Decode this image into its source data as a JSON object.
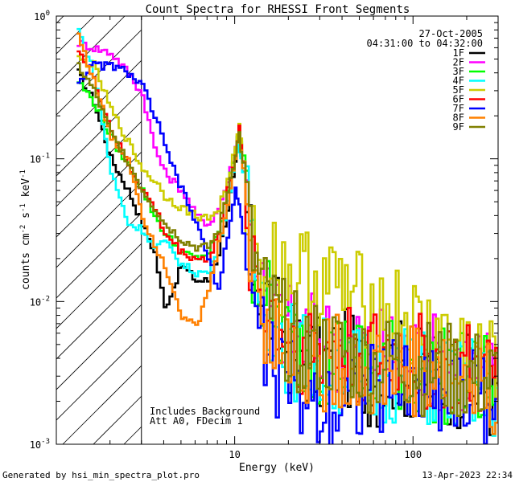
{
  "chart_data": {
    "type": "line",
    "title": "Count Spectra for RHESSI Front Segments",
    "xlabel": "Energy (keV)",
    "ylabel": {
      "base": "counts cm",
      "sup1": "-2",
      "mid1": " s",
      "sup2": "-1",
      "mid2": " keV",
      "sup3": "-1"
    },
    "xscale": "log",
    "yscale": "log",
    "xlim": [
      1.0,
      300
    ],
    "ylim": [
      0.001,
      1.0
    ],
    "xticks": [
      {
        "value": 10,
        "label": "10"
      },
      {
        "value": 100,
        "label": "100"
      }
    ],
    "yticks": [
      {
        "value": 1.0,
        "base": "10",
        "exp": "0"
      },
      {
        "value": 0.1,
        "base": "10",
        "exp": "-1"
      },
      {
        "value": 0.01,
        "base": "10",
        "exp": "-2"
      },
      {
        "value": 0.001,
        "base": "10",
        "exp": "-3"
      }
    ],
    "attenuator_region": {
      "xmax_kev": 3.0
    },
    "legend": {
      "placement": "top-right",
      "date": "27-Oct-2005",
      "time_range": "04:31:00 to 04:32:00"
    },
    "annotation_lines": [
      "Includes Background",
      "Att A0, FDecim 1"
    ],
    "footer_left": "Generated by hsi_min_spectra_plot.pro",
    "footer_right": "13-Apr-2023 22:34",
    "series": [
      {
        "name": "1F",
        "color": "#000000",
        "energies": [
          1.3,
          1.6,
          2.0,
          2.5,
          3.0,
          3.5,
          4.0,
          5.0,
          6.0,
          7.0,
          8.0,
          9.0,
          10.0,
          10.5,
          11.0,
          12.0,
          14.0,
          17.0,
          20.0,
          25.0,
          30.0,
          40.0,
          50.0,
          60.0,
          80.0,
          100.0,
          150.0,
          200.0,
          250.0,
          300.0
        ],
        "values": [
          0.4,
          0.25,
          0.1,
          0.06,
          0.035,
          0.022,
          0.009,
          0.018,
          0.014,
          0.014,
          0.022,
          0.045,
          0.09,
          0.13,
          0.08,
          0.022,
          0.012,
          0.007,
          0.0048,
          0.004,
          0.0035,
          0.0042,
          0.0033,
          0.0028,
          0.0036,
          0.0031,
          0.003,
          0.0027,
          0.0024,
          0.0022
        ]
      },
      {
        "name": "2F",
        "color": "#ff00ff",
        "energies": [
          1.3,
          1.6,
          2.0,
          2.5,
          3.0,
          3.5,
          4.0,
          5.0,
          6.0,
          7.0,
          8.0,
          9.0,
          10.0,
          10.5,
          11.0,
          12.0,
          14.0,
          17.0,
          20.0,
          25.0,
          30.0,
          40.0,
          50.0,
          60.0,
          80.0,
          100.0,
          150.0,
          200.0,
          250.0,
          300.0
        ],
        "values": [
          0.65,
          0.6,
          0.55,
          0.4,
          0.28,
          0.12,
          0.08,
          0.06,
          0.04,
          0.035,
          0.045,
          0.07,
          0.12,
          0.16,
          0.1,
          0.03,
          0.012,
          0.008,
          0.0065,
          0.0055,
          0.0055,
          0.005,
          0.0045,
          0.0043,
          0.0045,
          0.0042,
          0.0038,
          0.0035,
          0.0033,
          0.003
        ]
      },
      {
        "name": "3F",
        "color": "#00ff00",
        "energies": [
          1.3,
          1.6,
          2.0,
          2.5,
          3.0,
          3.5,
          4.0,
          5.0,
          6.0,
          7.0,
          8.0,
          9.0,
          10.0,
          10.5,
          11.0,
          12.0,
          14.0,
          17.0,
          20.0,
          25.0,
          30.0,
          40.0,
          50.0,
          60.0,
          80.0,
          100.0,
          150.0,
          200.0,
          250.0,
          300.0
        ],
        "values": [
          0.35,
          0.25,
          0.14,
          0.09,
          0.06,
          0.04,
          0.03,
          0.022,
          0.02,
          0.022,
          0.03,
          0.06,
          0.12,
          0.18,
          0.1,
          0.025,
          0.011,
          0.0072,
          0.0052,
          0.0045,
          0.0042,
          0.004,
          0.0036,
          0.0032,
          0.0037,
          0.0033,
          0.003,
          0.0028,
          0.0026,
          0.0024
        ]
      },
      {
        "name": "4F",
        "color": "#00ffff",
        "energies": [
          1.3,
          1.6,
          2.0,
          2.5,
          3.0,
          3.5,
          4.0,
          5.0,
          6.0,
          7.0,
          8.0,
          9.0,
          10.0,
          10.5,
          11.0,
          12.0,
          14.0,
          17.0,
          20.0,
          25.0,
          30.0,
          40.0,
          50.0,
          60.0,
          80.0,
          100.0,
          150.0,
          200.0,
          250.0,
          300.0
        ],
        "values": [
          0.8,
          0.4,
          0.08,
          0.035,
          0.032,
          0.024,
          0.026,
          0.018,
          0.016,
          0.016,
          0.025,
          0.05,
          0.1,
          0.14,
          0.08,
          0.022,
          0.011,
          0.0066,
          0.0047,
          0.004,
          0.0036,
          0.0034,
          0.0031,
          0.0029,
          0.0032,
          0.003,
          0.0028,
          0.0026,
          0.0024,
          0.0022
        ]
      },
      {
        "name": "5F",
        "color": "#cccc00",
        "energies": [
          1.3,
          1.6,
          2.0,
          2.5,
          3.0,
          3.5,
          4.0,
          5.0,
          6.0,
          7.0,
          8.0,
          9.0,
          10.0,
          10.5,
          11.0,
          12.0,
          14.0,
          17.0,
          20.0,
          25.0,
          30.0,
          40.0,
          50.0,
          60.0,
          80.0,
          100.0,
          150.0,
          200.0,
          250.0,
          300.0
        ],
        "values": [
          0.5,
          0.45,
          0.22,
          0.13,
          0.085,
          0.07,
          0.055,
          0.045,
          0.04,
          0.038,
          0.045,
          0.07,
          0.12,
          0.17,
          0.1,
          0.03,
          0.022,
          0.018,
          0.016,
          0.015,
          0.014,
          0.012,
          0.01,
          0.009,
          0.008,
          0.0065,
          0.0055,
          0.0045,
          0.0038,
          0.0032
        ]
      },
      {
        "name": "6F",
        "color": "#ff0000",
        "energies": [
          1.3,
          1.6,
          2.0,
          2.5,
          3.0,
          3.5,
          4.0,
          5.0,
          6.0,
          7.0,
          8.0,
          9.0,
          10.0,
          10.5,
          11.0,
          12.0,
          14.0,
          17.0,
          20.0,
          25.0,
          30.0,
          40.0,
          50.0,
          60.0,
          80.0,
          100.0,
          150.0,
          200.0,
          250.0,
          300.0
        ],
        "values": [
          0.6,
          0.35,
          0.16,
          0.09,
          0.06,
          0.045,
          0.03,
          0.022,
          0.02,
          0.02,
          0.03,
          0.06,
          0.11,
          0.16,
          0.09,
          0.025,
          0.011,
          0.0075,
          0.0055,
          0.0048,
          0.0045,
          0.0045,
          0.0042,
          0.004,
          0.0042,
          0.0038,
          0.0034,
          0.0031,
          0.0028,
          0.0026
        ]
      },
      {
        "name": "7F",
        "color": "#0000ff",
        "energies": [
          1.3,
          1.6,
          2.0,
          2.5,
          3.0,
          3.5,
          4.0,
          5.0,
          6.0,
          7.0,
          8.0,
          9.0,
          10.0,
          10.5,
          11.0,
          12.0,
          14.0,
          17.0,
          20.0,
          25.0,
          30.0,
          40.0,
          50.0,
          60.0,
          80.0,
          100.0,
          150.0,
          200.0,
          250.0,
          300.0
        ],
        "values": [
          0.35,
          0.45,
          0.45,
          0.4,
          0.32,
          0.2,
          0.12,
          0.06,
          0.035,
          0.02,
          0.012,
          0.03,
          0.06,
          0.05,
          0.03,
          0.012,
          0.0055,
          0.0032,
          0.0025,
          0.0022,
          0.002,
          0.0022,
          0.0024,
          0.0023,
          0.0028,
          0.0026,
          0.0025,
          0.0023,
          0.0022,
          0.002
        ]
      },
      {
        "name": "8F",
        "color": "#ff8000",
        "energies": [
          1.3,
          1.6,
          2.0,
          2.5,
          3.0,
          3.5,
          4.0,
          5.0,
          6.0,
          7.0,
          8.0,
          9.0,
          10.0,
          10.5,
          11.0,
          12.0,
          14.0,
          17.0,
          20.0,
          25.0,
          30.0,
          40.0,
          50.0,
          60.0,
          80.0,
          100.0,
          150.0,
          200.0,
          250.0,
          300.0
        ],
        "values": [
          0.75,
          0.35,
          0.14,
          0.1,
          0.04,
          0.025,
          0.018,
          0.008,
          0.0065,
          0.012,
          0.025,
          0.05,
          0.1,
          0.15,
          0.09,
          0.02,
          0.009,
          0.0055,
          0.0042,
          0.0038,
          0.0035,
          0.0037,
          0.0034,
          0.0031,
          0.0036,
          0.0033,
          0.003,
          0.0028,
          0.0026,
          0.0024
        ]
      },
      {
        "name": "9F",
        "color": "#808000",
        "energies": [
          1.3,
          1.6,
          2.0,
          2.5,
          3.0,
          3.5,
          4.0,
          5.0,
          6.0,
          7.0,
          8.0,
          9.0,
          10.0,
          10.5,
          11.0,
          12.0,
          14.0,
          17.0,
          20.0,
          25.0,
          30.0,
          40.0,
          50.0,
          60.0,
          80.0,
          100.0,
          150.0,
          200.0,
          250.0,
          300.0
        ],
        "values": [
          0.45,
          0.3,
          0.15,
          0.095,
          0.06,
          0.045,
          0.035,
          0.027,
          0.024,
          0.024,
          0.032,
          0.06,
          0.11,
          0.15,
          0.09,
          0.025,
          0.011,
          0.0075,
          0.0056,
          0.0048,
          0.0045,
          0.0042,
          0.0038,
          0.0035,
          0.0038,
          0.0035,
          0.0032,
          0.003,
          0.0028,
          0.0026
        ]
      }
    ]
  }
}
